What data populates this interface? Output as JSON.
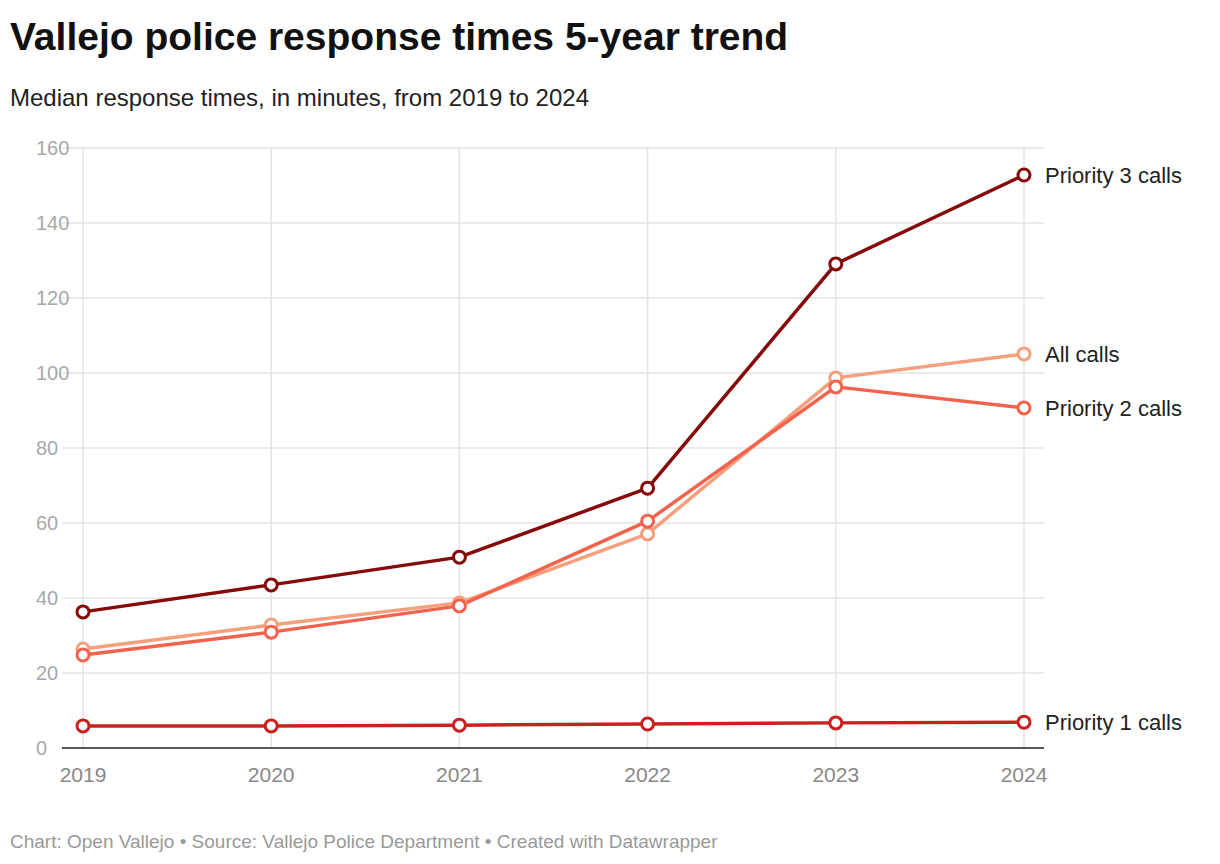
{
  "chart_data": {
    "type": "line",
    "title": "Vallejo police response times 5-year trend",
    "subtitle": "Median response times, in minutes, from 2019 to 2024",
    "source": "Chart: Open Vallejo • Source: Vallejo Police Department • Created with Datawrapper",
    "categories": [
      "2019",
      "2020",
      "2021",
      "2022",
      "2023",
      "2024"
    ],
    "series": [
      {
        "name": "Priority 3 calls",
        "color": "#860a0a",
        "values": [
          36.3,
          43.5,
          50.9,
          69.3,
          129.1,
          152.8
        ]
      },
      {
        "name": "All calls",
        "color": "#f59f7d",
        "values": [
          26.4,
          32.8,
          38.7,
          57.1,
          98.7,
          105.1
        ]
      },
      {
        "name": "Priority 2 calls",
        "color": "#f3624c",
        "values": [
          24.8,
          30.9,
          37.9,
          60.5,
          96.3,
          90.7
        ]
      },
      {
        "name": "Priority 1 calls",
        "color": "#c8211f",
        "values": [
          5.9,
          5.9,
          6.1,
          6.4,
          6.7,
          6.9
        ]
      }
    ],
    "ylim": [
      0,
      160
    ],
    "yticks": [
      0,
      20,
      40,
      60,
      80,
      100,
      120,
      140,
      160
    ],
    "grid": true,
    "marker": "circle"
  }
}
